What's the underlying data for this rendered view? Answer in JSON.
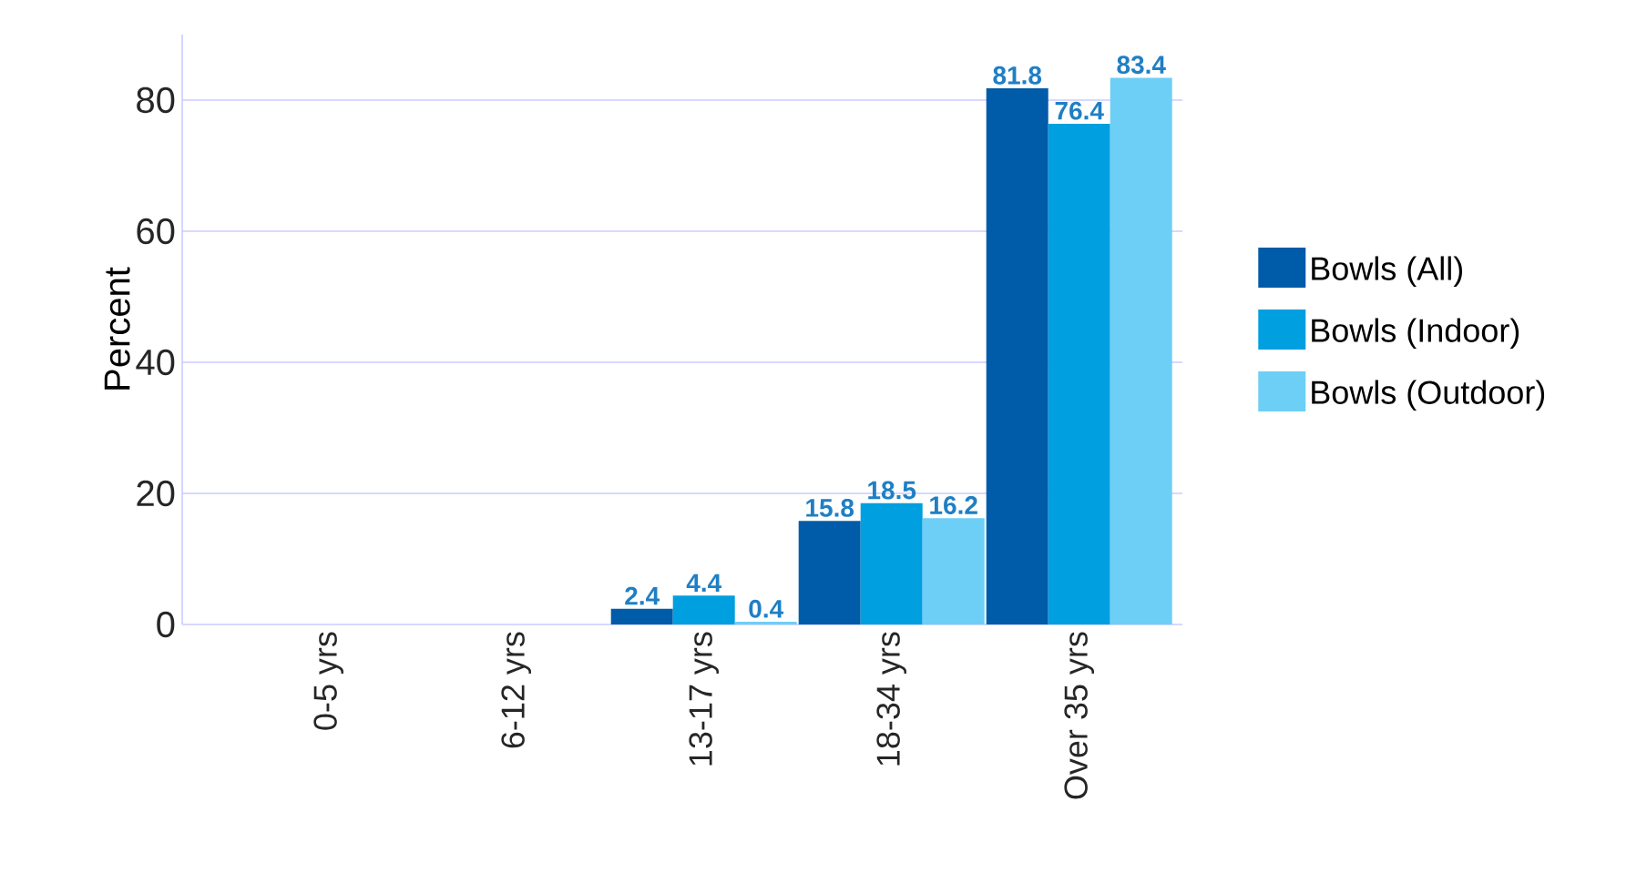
{
  "chart_data": {
    "type": "bar",
    "ylabel": "Percent",
    "categories": [
      "0-5 yrs",
      "6-12 yrs",
      "13-17 yrs",
      "18-34 yrs",
      "Over 35 yrs"
    ],
    "series": [
      {
        "name": "Bowls (All)",
        "color": "#005ba8",
        "values": [
          null,
          null,
          2.4,
          15.8,
          81.8
        ]
      },
      {
        "name": "Bowls (Indoor)",
        "color": "#009fdf",
        "values": [
          null,
          null,
          4.4,
          18.5,
          76.4
        ]
      },
      {
        "name": "Bowls (Outdoor)",
        "color": "#6dcff6",
        "values": [
          null,
          null,
          0.4,
          16.2,
          83.4
        ]
      }
    ],
    "ylim": [
      0,
      90
    ],
    "yticks": [
      0,
      20,
      40,
      60,
      80
    ],
    "grid": "y",
    "legend": "right",
    "data_labels": true
  }
}
